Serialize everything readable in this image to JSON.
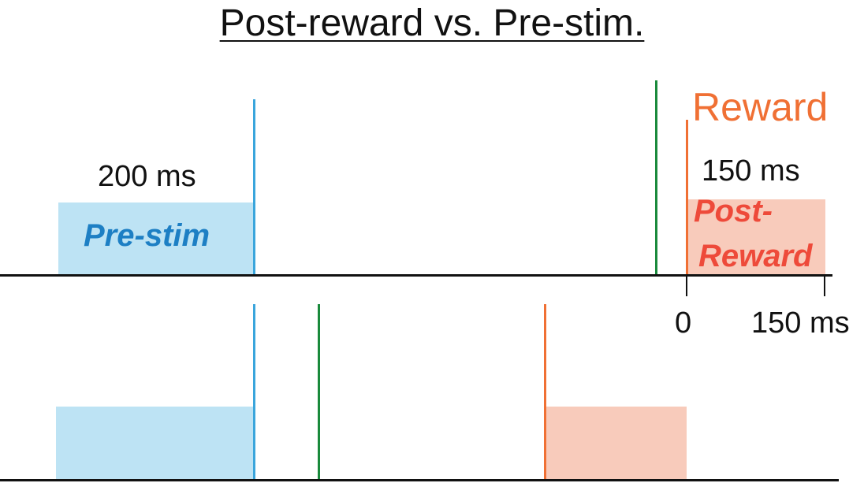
{
  "title": "Post-reward vs. Pre-stim.",
  "top_panel": {
    "pre_stim_duration": "200 ms",
    "pre_stim_label": "Pre-stim",
    "reward_label": "Reward",
    "post_reward_duration": "150 ms",
    "post_reward_label_line1": "Post-",
    "post_reward_label_line2": "Reward",
    "tick_zero": "0",
    "tick_end": "150 ms"
  },
  "colors": {
    "pre_stim_fill": "#bde3f4",
    "post_reward_fill": "#f8cbbb",
    "stim_line": "#3aa5dc",
    "green_line": "#1a8a3c",
    "reward_line": "#f07034",
    "pre_stim_text": "#1d7fc4",
    "post_reward_text": "#ee4a3a"
  }
}
